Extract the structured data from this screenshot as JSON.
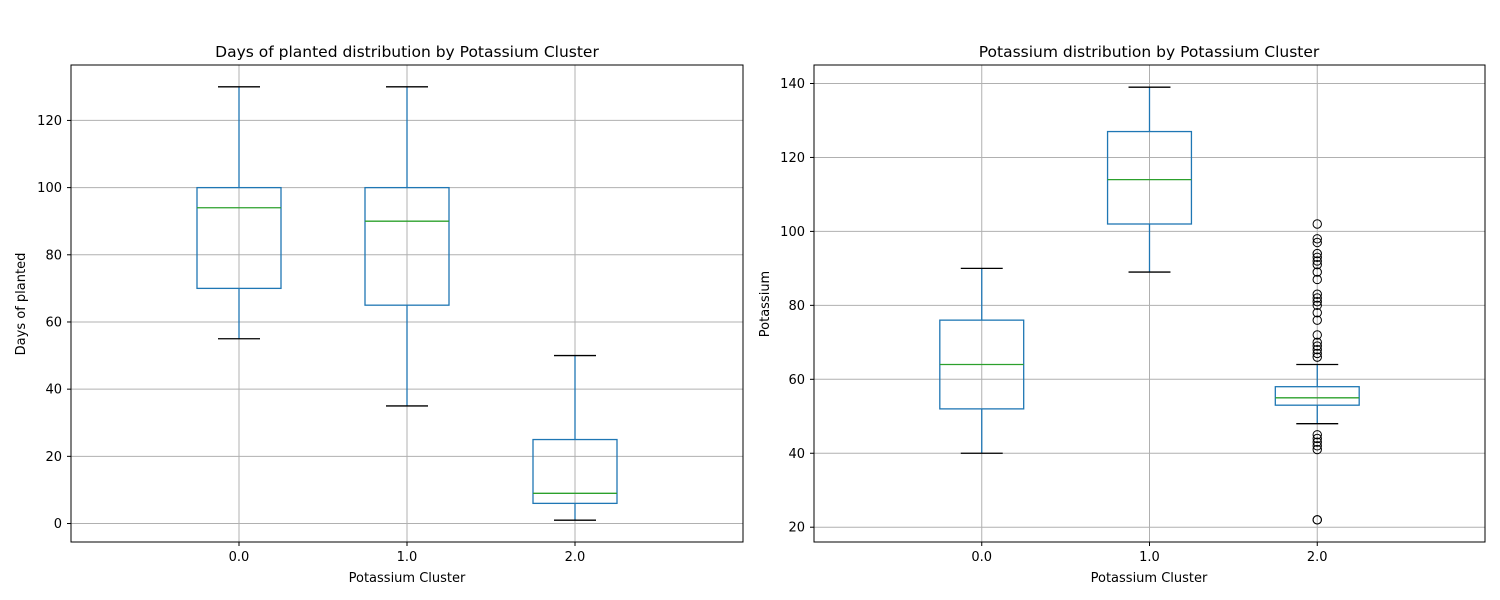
{
  "chart_data": [
    {
      "type": "box",
      "title": "Days of planted distribution by Potassium Cluster",
      "xlabel": "Potassium Cluster",
      "ylabel": "Days of planted",
      "categories": [
        "0.0",
        "1.0",
        "2.0"
      ],
      "ylim": [
        -5.5,
        136.5
      ],
      "yticks": [
        0,
        20,
        40,
        60,
        80,
        100,
        120
      ],
      "grid": true,
      "boxes": [
        {
          "category": "0.0",
          "whisker_low": 55,
          "q1": 70,
          "median": 94,
          "q3": 100,
          "whisker_high": 130,
          "outliers": []
        },
        {
          "category": "1.0",
          "whisker_low": 35,
          "q1": 65,
          "median": 90,
          "q3": 100,
          "whisker_high": 130,
          "outliers": []
        },
        {
          "category": "2.0",
          "whisker_low": 1,
          "q1": 6,
          "median": 9,
          "q3": 25,
          "whisker_high": 50,
          "outliers": []
        }
      ]
    },
    {
      "type": "box",
      "title": "Potassium distribution by Potassium Cluster",
      "xlabel": "Potassium Cluster",
      "ylabel": "Potassium",
      "categories": [
        "0.0",
        "1.0",
        "2.0"
      ],
      "ylim": [
        16,
        145
      ],
      "yticks": [
        20,
        40,
        60,
        80,
        100,
        120,
        140
      ],
      "grid": true,
      "boxes": [
        {
          "category": "0.0",
          "whisker_low": 40,
          "q1": 52,
          "median": 64,
          "q3": 76,
          "whisker_high": 90,
          "outliers": []
        },
        {
          "category": "1.0",
          "whisker_low": 89,
          "q1": 102,
          "median": 114,
          "q3": 127,
          "whisker_high": 139,
          "outliers": []
        },
        {
          "category": "2.0",
          "whisker_low": 48,
          "q1": 53,
          "median": 55,
          "q3": 58,
          "whisker_high": 64,
          "outliers": [
            22,
            22,
            41,
            42,
            43,
            44,
            45,
            66,
            67,
            68,
            69,
            70,
            72,
            76,
            78,
            80,
            81,
            82,
            83,
            87,
            89,
            91,
            92,
            93,
            94,
            97,
            98,
            102
          ]
        }
      ]
    }
  ],
  "colors": {
    "box": "#1f77b4",
    "median": "#2ca02c",
    "whisker_cap": "#000000",
    "grid": "#b0b0b0",
    "axes": "#000000"
  }
}
